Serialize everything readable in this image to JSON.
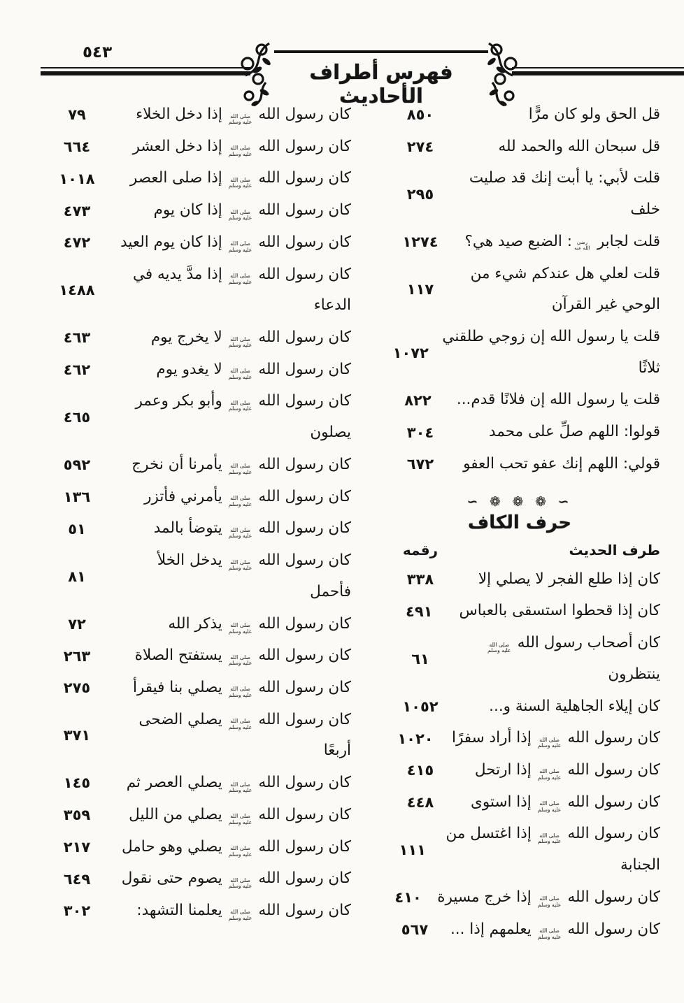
{
  "page": {
    "number": "٥٤٣",
    "title": "فهرس أطراف الأحاديث",
    "divider_ornament": "∼ ❁ ❁ ❁ ∼"
  },
  "right_column": {
    "entries_before_section": [
      {
        "text": "قل الحق ولو كان مرًّا",
        "num": "٨٥٠"
      },
      {
        "text": "قل سبحان الله والحمد لله",
        "num": "٢٧٤"
      },
      {
        "text": "قلت لأبي: يا أبت إنك قد صليت\nخلف",
        "num": "٢٩٥"
      },
      {
        "text": "قلت لجابر ﵁: الضبع صيد هي؟",
        "num": "١٢٧٤"
      },
      {
        "text": "قلت لعلي هل عندكم شيء من\nالوحي غير القرآن",
        "num": "١١٧"
      },
      {
        "text": "قلت يا رسول الله إن زوجي طلقني\nثلاثًا",
        "num": "١٠٧٢"
      },
      {
        "text": "قلت يا رسول الله إن فلانًا قدم...",
        "num": "٨٢٢"
      },
      {
        "text": "قولوا: اللهم صلِّ على محمد",
        "num": "٣٠٤"
      },
      {
        "text": "قولي: اللهم إنك عفو تحب العفو",
        "num": "٦٧٢"
      }
    ],
    "section": {
      "heading": "حرف الكاف",
      "col_text_header": "طرف الحديث",
      "col_num_header": "رقمه"
    },
    "entries_after_section": [
      {
        "text": "كان إذا طلع الفجر لا يصلي إلا",
        "num": "٣٣٨"
      },
      {
        "text": "كان إذا قحطوا استسقى بالعباس",
        "num": "٤٩١"
      },
      {
        "text": "كان أصحاب رسول الله ﷺ\nينتظرون",
        "num": "٦١"
      },
      {
        "text": "كان إيلاء الجاهلية السنة و...",
        "num": "١٠٥٢"
      },
      {
        "text": "كان رسول الله ﷺ إذا أراد سفرًا",
        "num": "١٠٢٠"
      },
      {
        "text": "كان رسول الله ﷺ إذا ارتحل",
        "num": "٤١٥"
      },
      {
        "text": "كان رسول الله ﷺ إذا استوى",
        "num": "٤٤٨"
      },
      {
        "text": "كان رسول الله ﷺ إذا اغتسل من\nالجنابة",
        "num": "١١١"
      },
      {
        "text": "كان رسول الله ﷺ إذا خرج مسيرة",
        "num": "٤١٠"
      },
      {
        "text": "كان رسول الله ﷺ يعلمهم إذا ...",
        "num": "٥٦٧"
      }
    ]
  },
  "left_column": {
    "entries": [
      {
        "text": "كان رسول الله ﷺ إذا دخل الخلاء",
        "num": "٧٩"
      },
      {
        "text": "كان رسول الله ﷺ إذا دخل العشر",
        "num": "٦٦٤"
      },
      {
        "text": "كان رسول الله ﷺ إذا صلى العصر",
        "num": "١٠١٨"
      },
      {
        "text": "كان رسول الله ﷺ إذا كان يوم",
        "num": "٤٧٣"
      },
      {
        "text": "كان رسول الله ﷺ إذا كان يوم العيد",
        "num": "٤٧٢"
      },
      {
        "text": "كان رسول الله ﷺ إذا مدَّ يديه في\nالدعاء",
        "num": "١٤٨٨"
      },
      {
        "text": "كان رسول الله ﷺ لا يخرج يوم",
        "num": "٤٦٣"
      },
      {
        "text": "كان رسول الله ﷺ لا يغدو يوم",
        "num": "٤٦٢"
      },
      {
        "text": "كان رسول الله ﷺ وأبو بكر وعمر\nيصلون",
        "num": "٤٦٥"
      },
      {
        "text": "كان رسول الله ﷺ يأمرنا أن نخرج",
        "num": "٥٩٢"
      },
      {
        "text": "كان رسول الله ﷺ يأمرني فأتزر",
        "num": "١٣٦"
      },
      {
        "text": "كان رسول الله ﷺ يتوضأ بالمد",
        "num": "٥١"
      },
      {
        "text": "كان رسول الله ﷺ يدخل الخلأ\nفأحمل",
        "num": "٨١"
      },
      {
        "text": "كان رسول الله ﷺ يذكر الله",
        "num": "٧٢"
      },
      {
        "text": "كان رسول الله ﷺ يستفتح الصلاة",
        "num": "٢٦٣"
      },
      {
        "text": "كان رسول الله ﷺ يصلي بنا فيقرأ",
        "num": "٢٧٥"
      },
      {
        "text": "كان رسول الله ﷺ يصلي الضحى\nأربعًا",
        "num": "٣٧١"
      },
      {
        "text": "كان رسول الله ﷺ يصلي العصر ثم",
        "num": "١٤٥"
      },
      {
        "text": "كان رسول الله ﷺ يصلي من الليل",
        "num": "٣٥٩"
      },
      {
        "text": "كان رسول الله ﷺ يصلي وهو حامل",
        "num": "٢١٧"
      },
      {
        "text": "كان رسول الله ﷺ يصوم حتى نقول",
        "num": "٦٤٩"
      },
      {
        "text": "كان رسول الله ﷺ يعلمنا التشهد:",
        "num": "٣٠٢"
      }
    ]
  }
}
